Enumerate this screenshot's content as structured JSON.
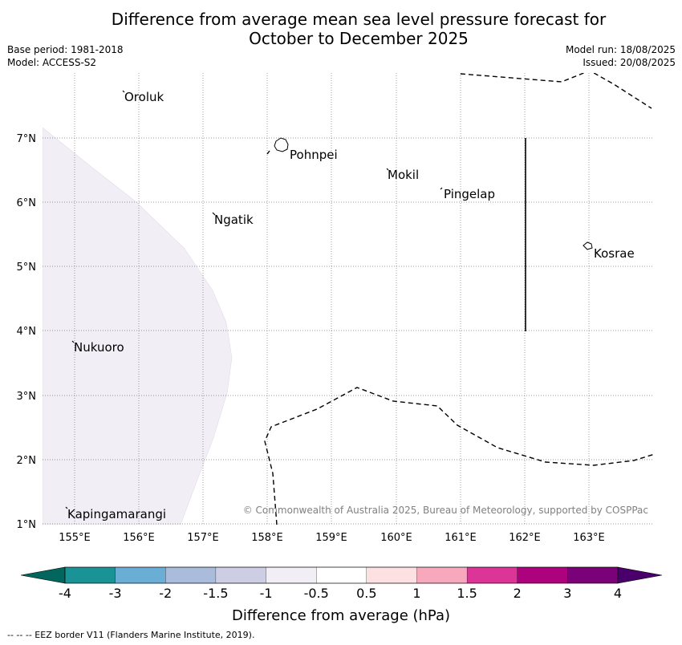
{
  "title_line1": "Difference from average mean sea level pressure forecast for",
  "title_line2": "October to December 2025",
  "base_period": "Base period: 1981-2018",
  "model": "Model: ACCESS-S2",
  "model_run": "Model run: 18/08/2025",
  "issued": "Issued: 20/08/2025",
  "map": {
    "lon_ticks": [
      "155°E",
      "156°E",
      "157°E",
      "158°E",
      "159°E",
      "160°E",
      "161°E",
      "162°E",
      "163°E"
    ],
    "lat_ticks": [
      "7°N",
      "6°N",
      "5°N",
      "4°N",
      "3°N",
      "2°N",
      "1°N"
    ],
    "places": [
      {
        "name": "Oroluk"
      },
      {
        "name": "Pohnpei"
      },
      {
        "name": "Mokil"
      },
      {
        "name": "Pingelap"
      },
      {
        "name": "Ngatik"
      },
      {
        "name": "Kosrae"
      },
      {
        "name": "Nukuoro"
      },
      {
        "name": "Kapingamarangi"
      }
    ],
    "copyright": "© Commonwealth of Australia 2025, Bureau of Meteorology, supported by COSPPac"
  },
  "colorbar": {
    "label": "Difference from average (hPa)",
    "tick_labels": [
      "-4",
      "-3",
      "-2",
      "-1.5",
      "-1",
      "-0.5",
      "0.5",
      "1",
      "1.5",
      "2",
      "3",
      "4"
    ],
    "colors": [
      "#1a9396",
      "#6aaed6",
      "#a9bcdc",
      "#cdcde3",
      "#f2eef5",
      "#ffffff",
      "#fde0e1",
      "#f7a8bd",
      "#dd3497",
      "#ae017e",
      "#7a0177"
    ],
    "under_color": "#01665e",
    "over_color": "#49006a"
  },
  "footnote": "--  --  -- EEZ border V11 (Flanders Marine Institute, 2019)."
}
